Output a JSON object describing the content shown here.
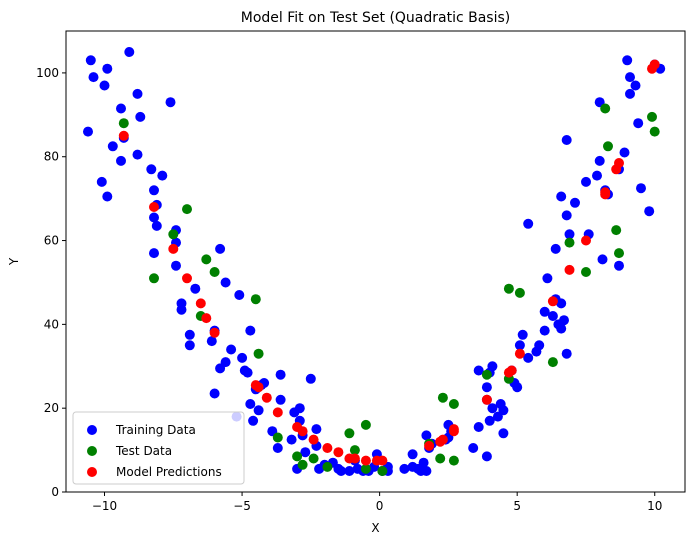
{
  "chart_data": {
    "type": "scatter",
    "title": "Model Fit on Test Set (Quadratic Basis)",
    "xlabel": "X",
    "ylabel": "Y",
    "xlim": [
      -11.4,
      11.1
    ],
    "ylim": [
      0,
      110
    ],
    "xticks": [
      -10,
      -5,
      0,
      5,
      10
    ],
    "yticks": [
      0,
      20,
      40,
      60,
      80,
      100
    ],
    "grid": false,
    "legend_position": "lower-left",
    "series": [
      {
        "name": "Training Data",
        "color": "#0000ff",
        "points": [
          [
            -10.5,
            103
          ],
          [
            -10.4,
            99
          ],
          [
            -10.6,
            86
          ],
          [
            -10.1,
            74
          ],
          [
            -10.0,
            97
          ],
          [
            -9.9,
            101
          ],
          [
            -9.9,
            70.5
          ],
          [
            -9.7,
            82.5
          ],
          [
            -9.4,
            91.5
          ],
          [
            -9.4,
            79
          ],
          [
            -9.3,
            84.5
          ],
          [
            -9.1,
            105
          ],
          [
            -8.8,
            95
          ],
          [
            -8.8,
            80.5
          ],
          [
            -8.7,
            89.5
          ],
          [
            -8.3,
            77
          ],
          [
            -8.2,
            72
          ],
          [
            -8.2,
            65.5
          ],
          [
            -8.1,
            68.5
          ],
          [
            -8.1,
            63.5
          ],
          [
            -8.2,
            57
          ],
          [
            -7.9,
            75.5
          ],
          [
            -7.6,
            93
          ],
          [
            -7.4,
            62.5
          ],
          [
            -7.4,
            59.5
          ],
          [
            -7.4,
            54
          ],
          [
            -7.2,
            45
          ],
          [
            -7.2,
            43.5
          ],
          [
            -6.9,
            37.5
          ],
          [
            -6.9,
            35
          ],
          [
            -6.7,
            48.5
          ],
          [
            -6.0,
            38.5
          ],
          [
            -6.1,
            36
          ],
          [
            -6.0,
            23.5
          ],
          [
            -5.8,
            58
          ],
          [
            -5.8,
            29.5
          ],
          [
            -5.6,
            50
          ],
          [
            -5.6,
            31
          ],
          [
            -5.4,
            34
          ],
          [
            -5.2,
            18
          ],
          [
            -5.1,
            47
          ],
          [
            -5.0,
            32
          ],
          [
            -4.9,
            29
          ],
          [
            -4.8,
            28.5
          ],
          [
            -4.7,
            38.5
          ],
          [
            -4.7,
            21
          ],
          [
            -4.6,
            17
          ],
          [
            -4.5,
            24.5
          ],
          [
            -4.4,
            19.5
          ],
          [
            -4.3,
            25.5
          ],
          [
            -4.2,
            26
          ],
          [
            -3.9,
            14.5
          ],
          [
            -3.7,
            10.5
          ],
          [
            -3.6,
            28
          ],
          [
            -3.6,
            22
          ],
          [
            -3.2,
            12.5
          ],
          [
            -3.1,
            19
          ],
          [
            -3.0,
            5.5
          ],
          [
            -2.9,
            20
          ],
          [
            -2.9,
            17
          ],
          [
            -2.8,
            13.5
          ],
          [
            -2.7,
            9.5
          ],
          [
            -2.5,
            27
          ],
          [
            -2.3,
            15
          ],
          [
            -2.3,
            11
          ],
          [
            -2.2,
            5.5
          ],
          [
            -2.0,
            6.5
          ],
          [
            -1.7,
            7
          ],
          [
            -1.5,
            5.5
          ],
          [
            -1.4,
            5
          ],
          [
            -1.1,
            5
          ],
          [
            -0.9,
            7.5
          ],
          [
            -0.8,
            5.5
          ],
          [
            -0.6,
            5
          ],
          [
            -0.4,
            5
          ],
          [
            -0.2,
            6
          ],
          [
            -0.1,
            9
          ],
          [
            0.1,
            5
          ],
          [
            0.3,
            5
          ],
          [
            0.3,
            6
          ],
          [
            0.9,
            5.5
          ],
          [
            1.2,
            9
          ],
          [
            1.2,
            6
          ],
          [
            1.4,
            5.5
          ],
          [
            1.5,
            5
          ],
          [
            1.6,
            7
          ],
          [
            1.7,
            5
          ],
          [
            1.7,
            13.5
          ],
          [
            1.8,
            10.5
          ],
          [
            1.9,
            11.5
          ],
          [
            2.4,
            12.5
          ],
          [
            2.5,
            16
          ],
          [
            2.5,
            13
          ],
          [
            2.6,
            14.5
          ],
          [
            3.4,
            10.5
          ],
          [
            3.6,
            15.5
          ],
          [
            3.6,
            29
          ],
          [
            3.9,
            8.5
          ],
          [
            3.9,
            25
          ],
          [
            3.9,
            22
          ],
          [
            4.0,
            28.5
          ],
          [
            4.0,
            17
          ],
          [
            4.1,
            30
          ],
          [
            4.1,
            20
          ],
          [
            4.3,
            18
          ],
          [
            4.4,
            21
          ],
          [
            4.5,
            14
          ],
          [
            4.5,
            19.5
          ],
          [
            4.8,
            29
          ],
          [
            4.9,
            26
          ],
          [
            5.0,
            25
          ],
          [
            5.1,
            35
          ],
          [
            5.2,
            37.5
          ],
          [
            5.4,
            32
          ],
          [
            5.4,
            64
          ],
          [
            5.7,
            33.5
          ],
          [
            5.8,
            35
          ],
          [
            6.0,
            43
          ],
          [
            6.0,
            38.5
          ],
          [
            6.1,
            51
          ],
          [
            6.3,
            42
          ],
          [
            6.4,
            46
          ],
          [
            6.4,
            58
          ],
          [
            6.5,
            40
          ],
          [
            6.6,
            45
          ],
          [
            6.6,
            70.5
          ],
          [
            6.6,
            39
          ],
          [
            6.7,
            41
          ],
          [
            6.8,
            33
          ],
          [
            6.8,
            84
          ],
          [
            6.8,
            66
          ],
          [
            6.9,
            61.5
          ],
          [
            7.1,
            69
          ],
          [
            7.5,
            74
          ],
          [
            7.6,
            61.5
          ],
          [
            7.9,
            75.5
          ],
          [
            8.0,
            79
          ],
          [
            8.0,
            93
          ],
          [
            8.1,
            55.5
          ],
          [
            8.2,
            72
          ],
          [
            8.3,
            71
          ],
          [
            8.7,
            54
          ],
          [
            8.7,
            77
          ],
          [
            8.9,
            81
          ],
          [
            9.0,
            103
          ],
          [
            9.1,
            99
          ],
          [
            9.1,
            95
          ],
          [
            9.3,
            97
          ],
          [
            9.4,
            88
          ],
          [
            9.5,
            72.5
          ],
          [
            9.8,
            67
          ],
          [
            10.0,
            102
          ],
          [
            10.2,
            101
          ]
        ]
      },
      {
        "name": "Test Data",
        "color": "#008000",
        "points": [
          [
            -9.3,
            88
          ],
          [
            -8.2,
            51
          ],
          [
            -7.5,
            61.5
          ],
          [
            -7.0,
            67.5
          ],
          [
            -6.5,
            42
          ],
          [
            -6.3,
            55.5
          ],
          [
            -6.0,
            52.5
          ],
          [
            -4.5,
            46
          ],
          [
            -4.4,
            33
          ],
          [
            -3.7,
            13
          ],
          [
            -3.0,
            8.5
          ],
          [
            -2.8,
            6.5
          ],
          [
            -2.4,
            8
          ],
          [
            -1.9,
            6
          ],
          [
            -1.1,
            14
          ],
          [
            -0.9,
            10
          ],
          [
            -0.5,
            16
          ],
          [
            -0.5,
            5.5
          ],
          [
            0.1,
            5
          ],
          [
            1.8,
            11.5
          ],
          [
            2.2,
            8
          ],
          [
            2.3,
            22.5
          ],
          [
            2.7,
            7.5
          ],
          [
            2.7,
            21
          ],
          [
            3.9,
            28
          ],
          [
            4.7,
            48.5
          ],
          [
            4.7,
            27
          ],
          [
            5.1,
            47.5
          ],
          [
            6.3,
            31
          ],
          [
            6.9,
            59.5
          ],
          [
            7.5,
            52.5
          ],
          [
            8.2,
            91.5
          ],
          [
            8.3,
            82.5
          ],
          [
            8.6,
            62.5
          ],
          [
            8.7,
            57
          ],
          [
            9.9,
            89.5
          ],
          [
            10.0,
            86
          ]
        ]
      },
      {
        "name": "Model Predictions",
        "color": "#ff0000",
        "points": [
          [
            -9.3,
            85
          ],
          [
            -8.2,
            68
          ],
          [
            -7.5,
            58
          ],
          [
            -7.0,
            51
          ],
          [
            -6.5,
            45
          ],
          [
            -6.3,
            41.5
          ],
          [
            -6.0,
            38
          ],
          [
            -4.5,
            25.5
          ],
          [
            -4.4,
            25
          ],
          [
            -4.1,
            22.5
          ],
          [
            -3.7,
            19
          ],
          [
            -3.0,
            15.5
          ],
          [
            -2.8,
            14.5
          ],
          [
            -2.4,
            12.5
          ],
          [
            -1.9,
            10.5
          ],
          [
            -1.5,
            9.5
          ],
          [
            -1.1,
            8
          ],
          [
            -0.9,
            8
          ],
          [
            -0.5,
            7.5
          ],
          [
            -0.1,
            7.5
          ],
          [
            0.1,
            7.5
          ],
          [
            1.8,
            11
          ],
          [
            2.2,
            12
          ],
          [
            2.3,
            12.5
          ],
          [
            2.7,
            14.5
          ],
          [
            2.7,
            15
          ],
          [
            3.9,
            22
          ],
          [
            4.7,
            28.5
          ],
          [
            4.8,
            29
          ],
          [
            5.1,
            33
          ],
          [
            6.3,
            45.5
          ],
          [
            6.9,
            53
          ],
          [
            7.5,
            60
          ],
          [
            8.2,
            71.5
          ],
          [
            8.2,
            71
          ],
          [
            8.6,
            77
          ],
          [
            8.7,
            78.5
          ],
          [
            9.9,
            101
          ],
          [
            10.0,
            102
          ]
        ]
      }
    ]
  }
}
